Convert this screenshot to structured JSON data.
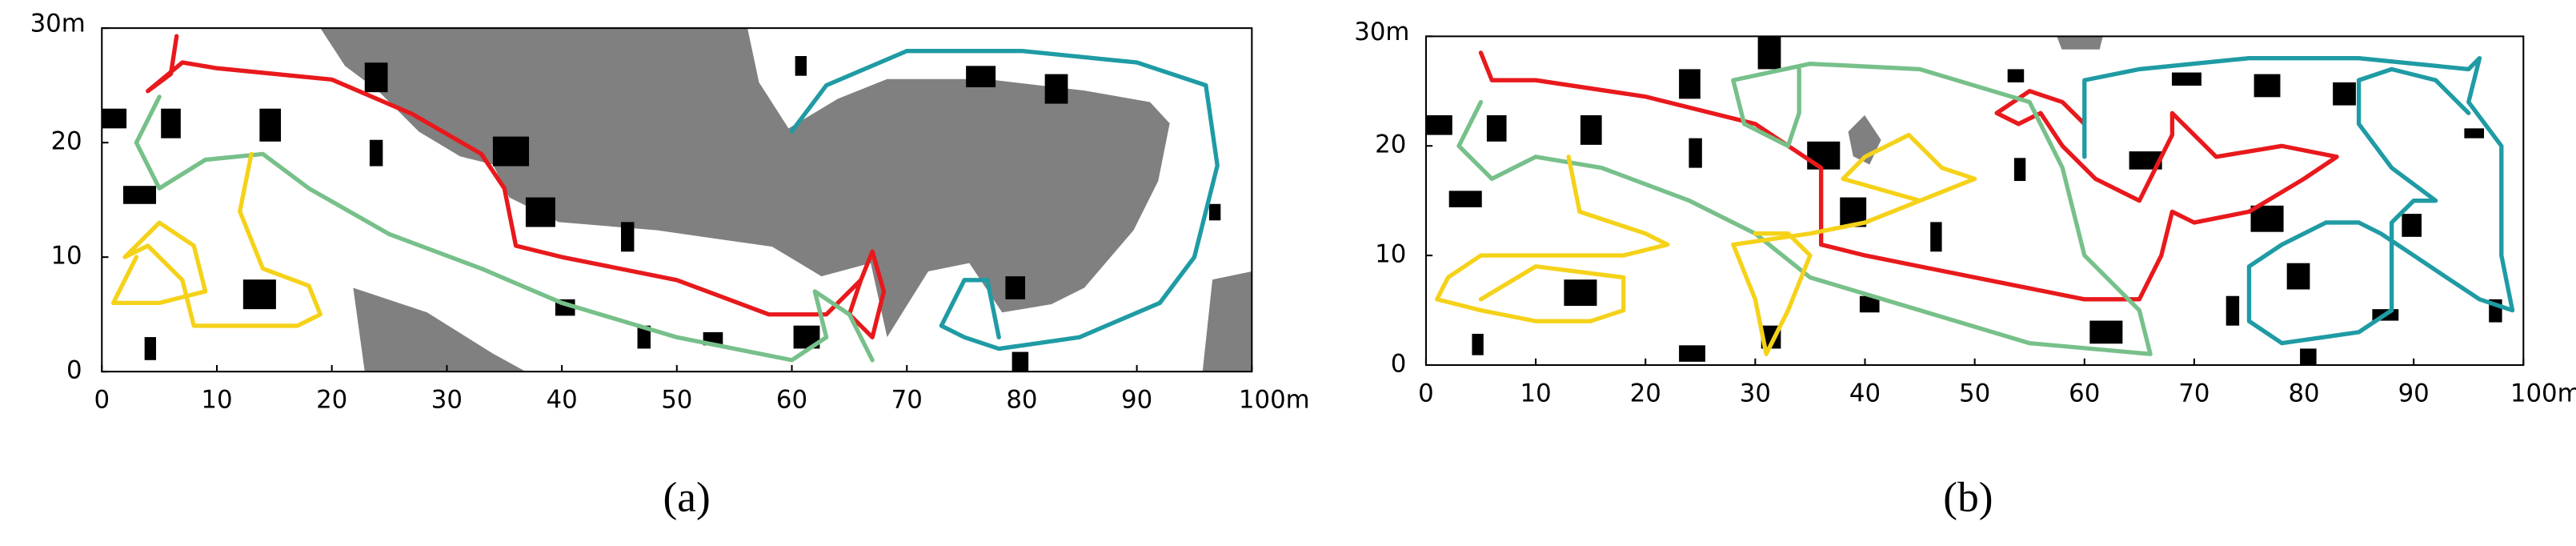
{
  "chart_data": [
    {
      "type": "line",
      "caption": "(a)",
      "xlim": [
        0,
        100
      ],
      "ylim": [
        0,
        30
      ],
      "xticks": [
        0,
        10,
        20,
        30,
        40,
        50,
        60,
        70,
        80,
        90,
        {
          "value": 100,
          "label": "100m"
        }
      ],
      "yticks": [
        0,
        10,
        20,
        {
          "value": 30,
          "label": "30m"
        }
      ],
      "series": [
        {
          "color": "#e8191c",
          "x": [
            6.5,
            6,
            4,
            7,
            10,
            20,
            27,
            33,
            35,
            36,
            40,
            50,
            58,
            63,
            66,
            67,
            68,
            67,
            65,
            66
          ],
          "values": [
            29.3,
            26,
            24.5,
            27,
            26.5,
            25.5,
            22.5,
            19,
            16,
            11,
            10,
            8,
            5,
            5,
            8,
            10.5,
            7,
            3,
            5,
            8
          ]
        },
        {
          "color": "#77c08a",
          "x": [
            5,
            3,
            5,
            9,
            14,
            18,
            25,
            33,
            40,
            50,
            60,
            63,
            62,
            65,
            67
          ],
          "values": [
            24,
            20,
            16,
            18.5,
            19,
            16,
            12,
            9,
            6,
            3,
            1,
            3,
            7,
            5,
            1
          ]
        },
        {
          "color": "#f5d21a",
          "x": [
            13,
            12,
            14,
            18,
            19,
            17,
            12,
            8,
            7,
            4,
            2,
            5,
            8,
            9,
            5,
            1,
            3
          ],
          "values": [
            19,
            14,
            9,
            7.5,
            5,
            4,
            4,
            4,
            8,
            11,
            10,
            13,
            11,
            7,
            6,
            6,
            10
          ]
        },
        {
          "color": "#1f9ba4",
          "x": [
            60,
            63,
            70,
            80,
            90,
            96,
            97,
            95,
            92,
            85,
            78,
            75,
            73,
            75,
            77,
            78
          ],
          "values": [
            21,
            25,
            28,
            28,
            27,
            25,
            18,
            10,
            6,
            3,
            2,
            3,
            4,
            8,
            8,
            3
          ]
        }
      ]
    },
    {
      "type": "line",
      "caption": "(b)",
      "xlim": [
        0,
        100
      ],
      "ylim": [
        0,
        30
      ],
      "xticks": [
        0,
        10,
        20,
        30,
        40,
        50,
        60,
        70,
        80,
        90,
        {
          "value": 100,
          "label": "100m"
        }
      ],
      "yticks": [
        0,
        10,
        20,
        {
          "value": 30,
          "label": "30m"
        }
      ],
      "series": [
        {
          "color": "#e8191c",
          "x": [
            5,
            6,
            10,
            20,
            30,
            36,
            36,
            40,
            50,
            60,
            65,
            67,
            68,
            70,
            75,
            80,
            83,
            78,
            72,
            68,
            68,
            65,
            61,
            58,
            56,
            54,
            52,
            55,
            58,
            60
          ],
          "values": [
            28.5,
            26,
            26,
            24.5,
            22,
            18,
            11,
            10,
            8,
            6,
            6,
            10,
            14,
            13,
            14,
            17,
            19,
            20,
            19,
            23,
            21,
            15,
            17,
            20,
            23,
            22,
            23,
            25,
            24,
            22
          ]
        },
        {
          "color": "#77c08a",
          "x": [
            5,
            3,
            6,
            10,
            16,
            24,
            30,
            35,
            45,
            55,
            66,
            65,
            60,
            58,
            55,
            45,
            35,
            28,
            29,
            33,
            34,
            34
          ],
          "values": [
            24,
            20,
            17,
            19,
            18,
            15,
            12,
            8,
            5,
            2,
            1,
            5,
            10,
            18,
            24,
            27,
            27.5,
            26,
            22,
            20,
            23,
            27
          ]
        },
        {
          "color": "#f5d21a",
          "x": [
            13,
            14,
            20,
            22,
            18,
            12,
            5,
            2,
            1,
            5,
            10,
            15,
            18,
            18,
            10,
            5,
            null,
            30,
            33,
            35,
            33,
            31,
            30,
            28,
            35,
            40,
            45,
            50,
            47,
            44,
            40,
            38,
            45
          ],
          "values": [
            19,
            14,
            12,
            11,
            10,
            10,
            10,
            8,
            6,
            5,
            4,
            4,
            5,
            8,
            9,
            6,
            null,
            12,
            12,
            10,
            5,
            1,
            6,
            11,
            12,
            13,
            15,
            17,
            18,
            21,
            19,
            17,
            15
          ]
        },
        {
          "color": "#1f9ba4",
          "x": [
            60,
            60,
            65,
            75,
            85,
            95,
            96,
            95,
            98,
            98,
            99,
            96,
            93,
            90,
            87,
            85,
            82,
            78,
            75,
            75,
            78,
            85,
            88,
            88,
            90,
            92,
            88,
            85,
            85,
            88,
            92,
            95
          ],
          "values": [
            19,
            26,
            27,
            28,
            28,
            27,
            28,
            24,
            20,
            10,
            5,
            6,
            8,
            10,
            12,
            13,
            13,
            11,
            9,
            4,
            2,
            3,
            5,
            13,
            15,
            15,
            18,
            22,
            26,
            27,
            26,
            23
          ]
        }
      ]
    }
  ]
}
